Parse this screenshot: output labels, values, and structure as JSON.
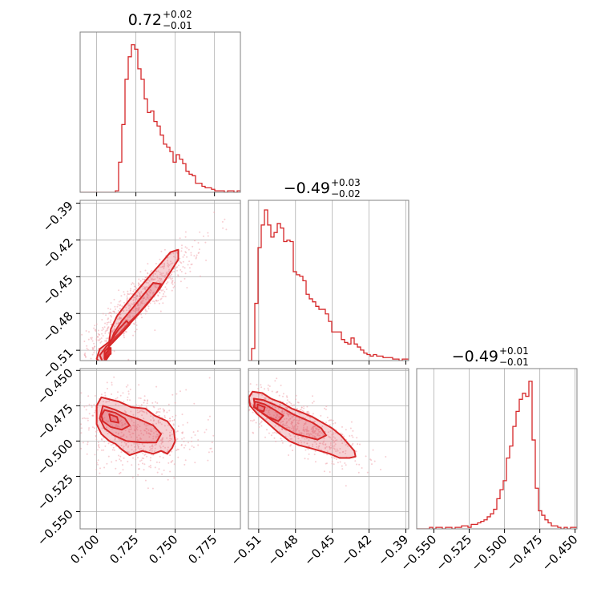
{
  "chart_data": {
    "type": "corner",
    "grid": true,
    "color": "#d62728",
    "fill_color": "#e05a63",
    "parameters": [
      {
        "title": {
          "median": "0.72",
          "plus": "+0.02",
          "minus": "−0.01"
        },
        "ticks": [
          0.7,
          0.725,
          0.75,
          0.775
        ],
        "tick_labels": [
          "0.700",
          "0.725",
          "0.750",
          "0.775"
        ],
        "range": [
          0.6895,
          0.7915
        ]
      },
      {
        "title": {
          "median": "−0.49",
          "plus": "+0.03",
          "minus": "−0.02"
        },
        "ticks": [
          -0.51,
          -0.48,
          -0.45,
          -0.42,
          -0.39
        ],
        "tick_labels": [
          "−0.51",
          "−0.48",
          "−0.45",
          "−0.42",
          "−0.39"
        ],
        "range": [
          -0.5184,
          -0.3877
        ]
      },
      {
        "title": {
          "median": "−0.49",
          "plus": "+0.01",
          "minus": "−0.01"
        },
        "ticks": [
          -0.55,
          -0.525,
          -0.5,
          -0.475,
          -0.45
        ],
        "tick_labels": [
          "−0.550",
          "−0.525",
          "−0.500",
          "−0.475",
          "−0.450"
        ],
        "range": [
          -0.5622,
          -0.4487
        ]
      }
    ],
    "histograms": [
      [
        0.0,
        0.0,
        0.0,
        0.0,
        0.0,
        0.0,
        0.0,
        0.0,
        0.0,
        0.0,
        0.0,
        0.01,
        0.2,
        0.45,
        0.75,
        0.9,
        0.98,
        0.95,
        0.82,
        0.75,
        0.62,
        0.53,
        0.54,
        0.47,
        0.44,
        0.38,
        0.32,
        0.3,
        0.27,
        0.2,
        0.25,
        0.22,
        0.19,
        0.14,
        0.12,
        0.11,
        0.06,
        0.06,
        0.04,
        0.03,
        0.03,
        0.02,
        0.01,
        0.01,
        0.01,
        0.0,
        0.01,
        0.01,
        0.0,
        0.01
      ],
      [
        0.0,
        0.08,
        0.38,
        0.75,
        0.9,
        1.0,
        0.9,
        0.82,
        0.85,
        0.91,
        0.88,
        0.79,
        0.8,
        0.79,
        0.59,
        0.57,
        0.56,
        0.53,
        0.44,
        0.41,
        0.39,
        0.36,
        0.34,
        0.34,
        0.31,
        0.26,
        0.19,
        0.19,
        0.19,
        0.14,
        0.12,
        0.11,
        0.15,
        0.11,
        0.09,
        0.07,
        0.05,
        0.04,
        0.03,
        0.04,
        0.03,
        0.03,
        0.02,
        0.02,
        0.02,
        0.01,
        0.01,
        0.0,
        0.01,
        0.01
      ],
      [
        0.0,
        0.0,
        0.0,
        0.0,
        0.01,
        0.0,
        0.01,
        0.01,
        0.0,
        0.01,
        0.01,
        0.0,
        0.01,
        0.01,
        0.02,
        0.02,
        0.01,
        0.03,
        0.03,
        0.04,
        0.05,
        0.06,
        0.08,
        0.1,
        0.13,
        0.2,
        0.26,
        0.32,
        0.47,
        0.55,
        0.68,
        0.78,
        0.86,
        0.9,
        0.88,
        0.98,
        0.59,
        0.27,
        0.12,
        0.09,
        0.06,
        0.04,
        0.02,
        0.02,
        0.01,
        0.0,
        0.01,
        0.0,
        0.01,
        0.01
      ]
    ],
    "pairs": [
      {
        "x": 0,
        "y": 1,
        "scatter": {
          "n": 700,
          "mean": [
            0.728,
            -0.468
          ],
          "sd_major": 0.028,
          "sd_minor": 0.006,
          "angle_deg": 51
        },
        "contours": [
          [
            [
              0.704,
              -0.522
            ],
            [
              0.7,
              -0.517
            ],
            [
              0.702,
              -0.509
            ],
            [
              0.707,
              -0.504
            ],
            [
              0.714,
              -0.497
            ],
            [
              0.721,
              -0.487
            ],
            [
              0.728,
              -0.478
            ],
            [
              0.734,
              -0.469
            ],
            [
              0.74,
              -0.46
            ],
            [
              0.744,
              -0.452
            ],
            [
              0.748,
              -0.444
            ],
            [
              0.752,
              -0.436
            ],
            [
              0.752,
              -0.428
            ],
            [
              0.747,
              -0.43
            ],
            [
              0.741,
              -0.439
            ],
            [
              0.734,
              -0.449
            ],
            [
              0.726,
              -0.461
            ],
            [
              0.719,
              -0.472
            ],
            [
              0.713,
              -0.482
            ],
            [
              0.709,
              -0.493
            ],
            [
              0.708,
              -0.503
            ],
            [
              0.708,
              -0.514
            ]
          ],
          [
            [
              0.704,
              -0.52
            ],
            [
              0.702,
              -0.514
            ],
            [
              0.706,
              -0.507
            ],
            [
              0.713,
              -0.499
            ],
            [
              0.72,
              -0.49
            ],
            [
              0.727,
              -0.48
            ],
            [
              0.733,
              -0.471
            ],
            [
              0.738,
              -0.463
            ],
            [
              0.741,
              -0.456
            ],
            [
              0.736,
              -0.455
            ],
            [
              0.729,
              -0.466
            ],
            [
              0.722,
              -0.477
            ],
            [
              0.716,
              -0.486
            ],
            [
              0.711,
              -0.496
            ],
            [
              0.708,
              -0.506
            ],
            [
              0.707,
              -0.515
            ]
          ],
          [
            [
              0.705,
              -0.517
            ],
            [
              0.705,
              -0.511
            ],
            [
              0.71,
              -0.504
            ],
            [
              0.716,
              -0.496
            ],
            [
              0.721,
              -0.489
            ],
            [
              0.719,
              -0.486
            ],
            [
              0.714,
              -0.493
            ],
            [
              0.709,
              -0.502
            ],
            [
              0.707,
              -0.511
            ]
          ],
          [
            [
              0.705,
              -0.516
            ],
            [
              0.706,
              -0.512
            ],
            [
              0.709,
              -0.508
            ],
            [
              0.709,
              -0.513
            ]
          ]
        ]
      },
      {
        "x": 0,
        "y": 2,
        "scatter": {
          "n": 650,
          "mean": [
            0.725,
            -0.493
          ],
          "sd_major": 0.022,
          "sd_minor": 0.014,
          "angle_deg": -14
        },
        "contours": [
          [
            [
              0.703,
              -0.469
            ],
            [
              0.714,
              -0.472
            ],
            [
              0.722,
              -0.476
            ],
            [
              0.731,
              -0.477
            ],
            [
              0.737,
              -0.482
            ],
            [
              0.745,
              -0.486
            ],
            [
              0.749,
              -0.492
            ],
            [
              0.75,
              -0.5
            ],
            [
              0.748,
              -0.505
            ],
            [
              0.745,
              -0.509
            ],
            [
              0.741,
              -0.507
            ],
            [
              0.736,
              -0.509
            ],
            [
              0.729,
              -0.507
            ],
            [
              0.721,
              -0.51
            ],
            [
              0.716,
              -0.506
            ],
            [
              0.712,
              -0.502
            ],
            [
              0.708,
              -0.5
            ],
            [
              0.703,
              -0.495
            ],
            [
              0.7,
              -0.488
            ],
            [
              0.7,
              -0.481
            ],
            [
              0.7,
              -0.475
            ]
          ],
          [
            [
              0.704,
              -0.475
            ],
            [
              0.712,
              -0.478
            ],
            [
              0.72,
              -0.482
            ],
            [
              0.728,
              -0.485
            ],
            [
              0.736,
              -0.489
            ],
            [
              0.741,
              -0.495
            ],
            [
              0.738,
              -0.501
            ],
            [
              0.729,
              -0.501
            ],
            [
              0.719,
              -0.5
            ],
            [
              0.711,
              -0.496
            ],
            [
              0.705,
              -0.491
            ],
            [
              0.702,
              -0.484
            ]
          ],
          [
            [
              0.705,
              -0.478
            ],
            [
              0.712,
              -0.48
            ],
            [
              0.718,
              -0.484
            ],
            [
              0.721,
              -0.489
            ],
            [
              0.716,
              -0.492
            ],
            [
              0.709,
              -0.49
            ],
            [
              0.704,
              -0.486
            ],
            [
              0.703,
              -0.482
            ]
          ],
          [
            [
              0.708,
              -0.481
            ],
            [
              0.713,
              -0.483
            ],
            [
              0.714,
              -0.487
            ],
            [
              0.709,
              -0.486
            ]
          ]
        ]
      },
      {
        "x": 1,
        "y": 2,
        "scatter": {
          "n": 700,
          "mean": [
            -0.478,
            -0.488
          ],
          "sd_major": 0.026,
          "sd_minor": 0.008,
          "angle_deg": -25
        },
        "contours": [
          [
            [
              -0.515,
              -0.465
            ],
            [
              -0.507,
              -0.466
            ],
            [
              -0.5,
              -0.47
            ],
            [
              -0.491,
              -0.473
            ],
            [
              -0.483,
              -0.477
            ],
            [
              -0.474,
              -0.48
            ],
            [
              -0.466,
              -0.483
            ],
            [
              -0.458,
              -0.487
            ],
            [
              -0.45,
              -0.491
            ],
            [
              -0.443,
              -0.496
            ],
            [
              -0.437,
              -0.502
            ],
            [
              -0.432,
              -0.507
            ],
            [
              -0.431,
              -0.511
            ],
            [
              -0.436,
              -0.512
            ],
            [
              -0.444,
              -0.512
            ],
            [
              -0.452,
              -0.509
            ],
            [
              -0.46,
              -0.507
            ],
            [
              -0.468,
              -0.505
            ],
            [
              -0.477,
              -0.503
            ],
            [
              -0.485,
              -0.5
            ],
            [
              -0.494,
              -0.494
            ],
            [
              -0.503,
              -0.487
            ],
            [
              -0.511,
              -0.481
            ],
            [
              -0.517,
              -0.475
            ],
            [
              -0.518,
              -0.469
            ]
          ],
          [
            [
              -0.514,
              -0.47
            ],
            [
              -0.506,
              -0.471
            ],
            [
              -0.498,
              -0.474
            ],
            [
              -0.49,
              -0.477
            ],
            [
              -0.482,
              -0.481
            ],
            [
              -0.474,
              -0.484
            ],
            [
              -0.466,
              -0.487
            ],
            [
              -0.459,
              -0.491
            ],
            [
              -0.455,
              -0.496
            ],
            [
              -0.462,
              -0.499
            ],
            [
              -0.471,
              -0.497
            ],
            [
              -0.48,
              -0.495
            ],
            [
              -0.489,
              -0.491
            ],
            [
              -0.498,
              -0.486
            ],
            [
              -0.506,
              -0.481
            ],
            [
              -0.513,
              -0.476
            ]
          ],
          [
            [
              -0.513,
              -0.472
            ],
            [
              -0.505,
              -0.474
            ],
            [
              -0.497,
              -0.478
            ],
            [
              -0.49,
              -0.482
            ],
            [
              -0.494,
              -0.486
            ],
            [
              -0.502,
              -0.483
            ],
            [
              -0.509,
              -0.479
            ],
            [
              -0.514,
              -0.476
            ]
          ],
          [
            [
              -0.511,
              -0.474
            ],
            [
              -0.505,
              -0.476
            ],
            [
              -0.506,
              -0.479
            ],
            [
              -0.511,
              -0.478
            ]
          ]
        ]
      }
    ]
  }
}
